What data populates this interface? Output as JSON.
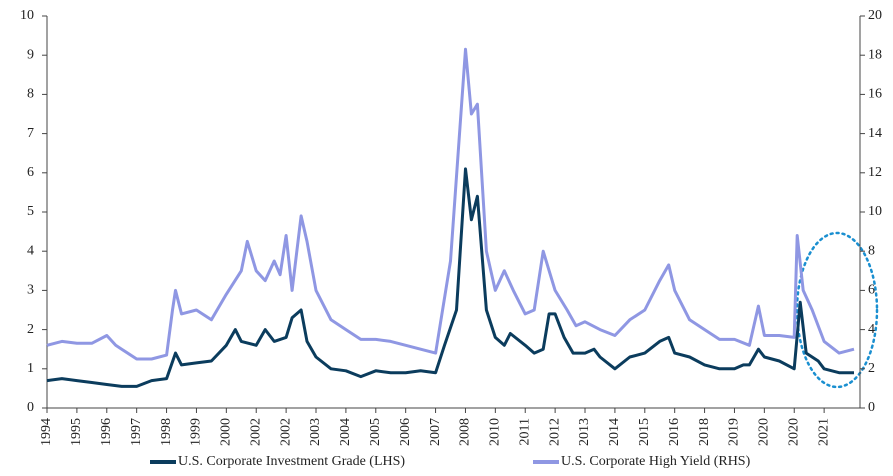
{
  "chart_data": {
    "type": "line",
    "xlim": [
      0,
      27.2
    ],
    "xticks": [
      {
        "value": 0,
        "label": "1994"
      },
      {
        "value": 1,
        "label": "1995"
      },
      {
        "value": 2,
        "label": "1996"
      },
      {
        "value": 3,
        "label": "1997"
      },
      {
        "value": 4,
        "label": "1998"
      },
      {
        "value": 5,
        "label": "1999"
      },
      {
        "value": 6,
        "label": "2000"
      },
      {
        "value": 7,
        "label": "2002"
      },
      {
        "value": 8,
        "label": "2002"
      },
      {
        "value": 9,
        "label": "2003"
      },
      {
        "value": 10,
        "label": "2004"
      },
      {
        "value": 11,
        "label": "2005"
      },
      {
        "value": 12,
        "label": "2006"
      },
      {
        "value": 13,
        "label": "2007"
      },
      {
        "value": 14,
        "label": "2008"
      },
      {
        "value": 15,
        "label": "2010"
      },
      {
        "value": 16,
        "label": "2011"
      },
      {
        "value": 17,
        "label": "2012"
      },
      {
        "value": 18,
        "label": "2013"
      },
      {
        "value": 19,
        "label": "2014"
      },
      {
        "value": 20,
        "label": "2015"
      },
      {
        "value": 21,
        "label": "2016"
      },
      {
        "value": 22,
        "label": "2018"
      },
      {
        "value": 23,
        "label": "2019"
      },
      {
        "value": 24,
        "label": "2020"
      },
      {
        "value": 25,
        "label": "2020"
      },
      {
        "value": 26,
        "label": "2021"
      }
    ],
    "ylim": [
      0,
      10
    ],
    "yticks": [
      0,
      1,
      2,
      3,
      4,
      5,
      6,
      7,
      8,
      9,
      10
    ],
    "y2lim": [
      0,
      20
    ],
    "y2ticks": [
      0,
      2,
      4,
      6,
      8,
      10,
      12,
      14,
      16,
      18,
      20
    ],
    "series": [
      {
        "name": "U.S. Corporate Investment Grade (LHS)",
        "color": "#0b3c5d",
        "axis": "y",
        "x": [
          0,
          0.5,
          1,
          1.5,
          2,
          2.5,
          3,
          3.5,
          4,
          4.3,
          4.5,
          5,
          5.5,
          6,
          6.3,
          6.5,
          7,
          7.3,
          7.6,
          8,
          8.2,
          8.5,
          8.7,
          9,
          9.5,
          10,
          10.5,
          11,
          11.5,
          12,
          12.5,
          13,
          13.3,
          13.7,
          14,
          14.2,
          14.4,
          14.7,
          15,
          15.3,
          15.5,
          16,
          16.3,
          16.6,
          16.8,
          17,
          17.3,
          17.6,
          18,
          18.3,
          18.5,
          19,
          19.5,
          20,
          20.5,
          20.8,
          21,
          21.5,
          22,
          22.5,
          23,
          23.3,
          23.5,
          23.8,
          24,
          24.5,
          25,
          25.2,
          25.4,
          25.8,
          26,
          26.5,
          27
        ],
        "values": [
          0.7,
          0.75,
          0.7,
          0.65,
          0.6,
          0.55,
          0.55,
          0.7,
          0.75,
          1.4,
          1.1,
          1.15,
          1.2,
          1.6,
          2.0,
          1.7,
          1.6,
          2.0,
          1.7,
          1.8,
          2.3,
          2.5,
          1.7,
          1.3,
          1.0,
          0.95,
          0.8,
          0.95,
          0.9,
          0.9,
          0.95,
          0.9,
          1.6,
          2.5,
          6.1,
          4.8,
          5.4,
          2.5,
          1.8,
          1.6,
          1.9,
          1.6,
          1.4,
          1.5,
          2.4,
          2.4,
          1.8,
          1.4,
          1.4,
          1.5,
          1.3,
          1.0,
          1.3,
          1.4,
          1.7,
          1.8,
          1.4,
          1.3,
          1.1,
          1.0,
          1.0,
          1.1,
          1.1,
          1.5,
          1.3,
          1.2,
          1.0,
          2.7,
          1.4,
          1.2,
          1.0,
          0.9,
          0.9
        ]
      },
      {
        "name": "U.S. Corporate High Yield (RHS)",
        "color": "#8f97e3",
        "axis": "y2",
        "x": [
          0,
          0.5,
          1,
          1.5,
          2,
          2.3,
          2.5,
          3,
          3.5,
          4,
          4.2,
          4.3,
          4.5,
          5,
          5.5,
          6,
          6.5,
          6.7,
          7,
          7.3,
          7.6,
          7.8,
          8,
          8.2,
          8.5,
          8.7,
          9,
          9.5,
          10,
          10.5,
          11,
          11.5,
          12,
          12.5,
          13,
          13.5,
          14,
          14.2,
          14.4,
          14.7,
          15,
          15.3,
          15.6,
          16,
          16.3,
          16.6,
          17,
          17.4,
          17.7,
          18,
          18.5,
          19,
          19.5,
          20,
          20.5,
          20.8,
          21,
          21.5,
          22,
          22.5,
          23,
          23.5,
          23.8,
          24,
          24.5,
          25,
          25.1,
          25.3,
          25.6,
          26,
          26.5,
          27
        ],
        "values": [
          3.2,
          3.4,
          3.3,
          3.3,
          3.7,
          3.2,
          3.0,
          2.5,
          2.5,
          2.7,
          5.0,
          6.0,
          4.8,
          5.0,
          4.5,
          5.8,
          7.0,
          8.5,
          7.0,
          6.5,
          7.5,
          6.8,
          8.8,
          6.0,
          9.8,
          8.5,
          6.0,
          4.5,
          4.0,
          3.5,
          3.5,
          3.4,
          3.2,
          3.0,
          2.8,
          7.5,
          18.3,
          15.0,
          15.5,
          8.0,
          6.0,
          7.0,
          6.0,
          4.8,
          5.0,
          8.0,
          6.0,
          5.0,
          4.2,
          4.4,
          4.0,
          3.7,
          4.5,
          5.0,
          6.5,
          7.3,
          6.0,
          4.5,
          4.0,
          3.5,
          3.5,
          3.2,
          5.2,
          3.7,
          3.7,
          3.6,
          8.8,
          6.0,
          5.0,
          3.4,
          2.8,
          3.0
        ]
      }
    ]
  }
}
